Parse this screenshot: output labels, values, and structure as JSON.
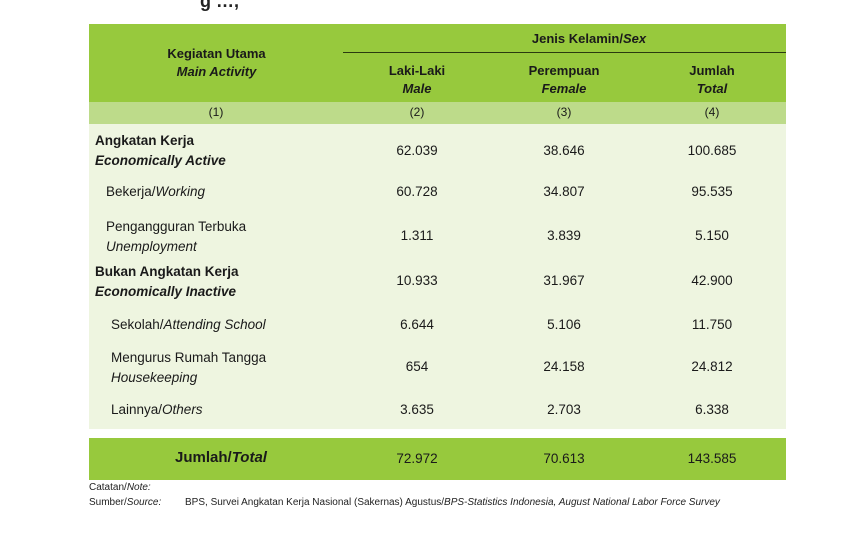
{
  "top_fragment": "g …,",
  "header": {
    "activity_id": "Kegiatan Utama",
    "activity_en": "Main Activity",
    "sex_id": "Jenis Kelamin/",
    "sex_en": "Sex",
    "male_id": "Laki-Laki",
    "male_en": "Male",
    "female_id": "Perempuan",
    "female_en": "Female",
    "total_id": "Jumlah",
    "total_en": "Total"
  },
  "col_numbers": [
    "(1)",
    "(2)",
    "(3)",
    "(4)"
  ],
  "rows": [
    {
      "id": "Angkatan Kerja",
      "en": "Economically Active",
      "male": "62.039",
      "female": "38.646",
      "total": "100.685"
    },
    {
      "id": "Bekerja/",
      "en": "Working",
      "male": "60.728",
      "female": "34.807",
      "total": "95.535"
    },
    {
      "id": "Pengangguran Terbuka",
      "en": "Unemployment",
      "male": "1.311",
      "female": "3.839",
      "total": "5.150"
    },
    {
      "id": "Bukan Angkatan Kerja",
      "en": "Economically Inactive",
      "male": "10.933",
      "female": "31.967",
      "total": "42.900"
    },
    {
      "id": "Sekolah/",
      "en": "Attending School",
      "male": "6.644",
      "female": "5.106",
      "total": "11.750"
    },
    {
      "id": "Mengurus Rumah Tangga",
      "en": "Housekeeping",
      "male": "654",
      "female": "24.158",
      "total": "24.812"
    },
    {
      "id": "Lainnya/",
      "en": "Others",
      "male": "3.635",
      "female": "2.703",
      "total": "6.338"
    }
  ],
  "total_row": {
    "id": "Jumlah/",
    "en": "Total",
    "male": "72.972",
    "female": "70.613",
    "total": "143.585"
  },
  "notes": {
    "note_label_id": "Catatan/",
    "note_label_en": "Note:",
    "source_label_id": "Sumber/",
    "source_label_en": "Source:",
    "source_text_id": "BPS, Survei Angkatan Kerja Nasional (Sakernas) Agustus/",
    "source_text_en": "BPS-Statistics Indonesia, August National Labor Force Survey"
  }
}
